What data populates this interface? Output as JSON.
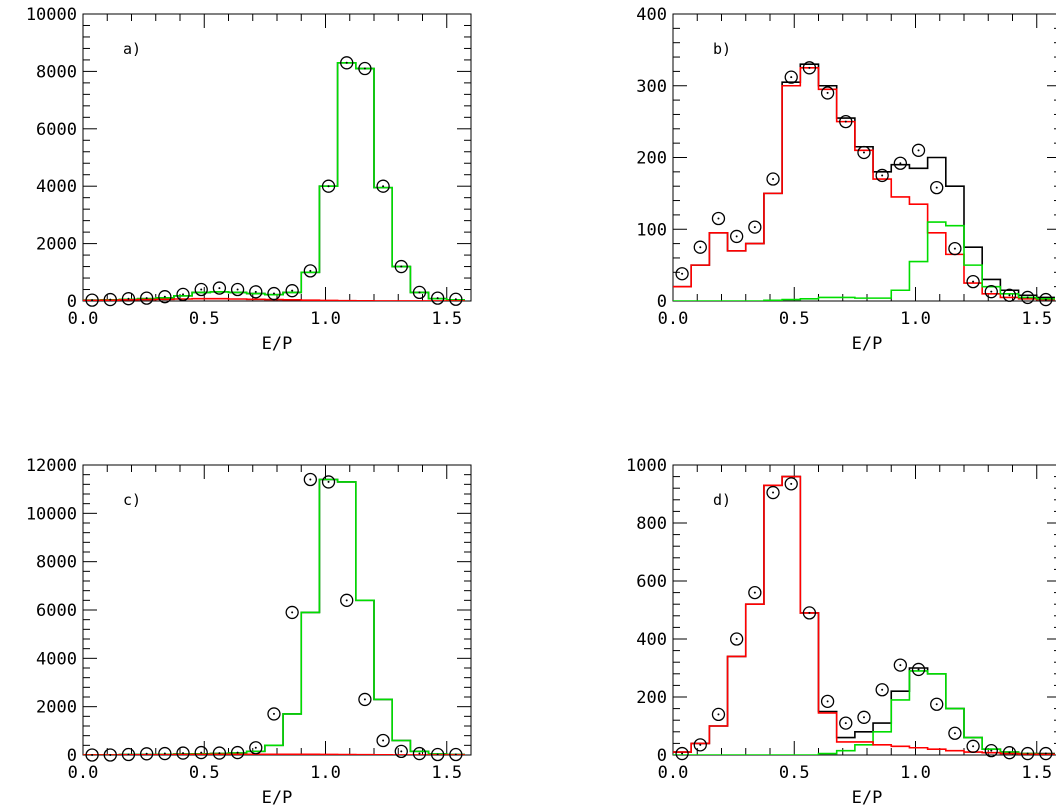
{
  "chart_data": [
    {
      "type": "histogram",
      "panel_label": "a)",
      "xlabel": "E/P",
      "ylabel": "",
      "xlim": [
        0.0,
        1.6
      ],
      "ylim": [
        0,
        10000
      ],
      "x_ticks": [
        "0.0",
        "0.5",
        "1.0",
        "1.5"
      ],
      "y_ticks": [
        "0",
        "2000",
        "4000",
        "6000",
        "8000",
        "10000"
      ],
      "bin_edges": [
        0.0,
        0.075,
        0.15,
        0.225,
        0.3,
        0.375,
        0.45,
        0.525,
        0.6,
        0.675,
        0.75,
        0.825,
        0.9,
        0.975,
        1.05,
        1.125,
        1.2,
        1.275,
        1.35,
        1.425,
        1.5,
        1.575
      ],
      "points_x": [
        0.0375,
        0.1125,
        0.1875,
        0.2625,
        0.3375,
        0.4125,
        0.4875,
        0.5625,
        0.6375,
        0.7125,
        0.7875,
        0.8625,
        0.9375,
        1.0125,
        1.0875,
        1.1625,
        1.2375,
        1.3125,
        1.3875,
        1.4625,
        1.5375
      ],
      "series": [
        {
          "color": "#000000",
          "values": [
            30,
            40,
            60,
            80,
            110,
            180,
            300,
            320,
            300,
            260,
            220,
            300,
            1000,
            4000,
            8300,
            8100,
            3950,
            1200,
            300,
            80,
            40
          ]
        },
        {
          "color": "#00dd00",
          "values": [
            30,
            40,
            60,
            80,
            110,
            180,
            300,
            320,
            300,
            260,
            220,
            300,
            1000,
            4000,
            8300,
            8100,
            3950,
            1200,
            300,
            80,
            40
          ]
        },
        {
          "color": "#ff0000",
          "values": [
            20,
            30,
            40,
            50,
            60,
            70,
            80,
            80,
            70,
            60,
            50,
            40,
            30,
            20,
            10,
            5,
            3,
            2,
            1,
            1,
            1
          ]
        }
      ],
      "points_y": [
        30,
        50,
        80,
        100,
        150,
        230,
        400,
        450,
        400,
        320,
        260,
        360,
        1050,
        4000,
        8300,
        8100,
        4000,
        1200,
        300,
        100,
        60
      ]
    },
    {
      "type": "histogram",
      "panel_label": "b)",
      "xlabel": "E/P",
      "ylabel": "",
      "xlim": [
        0.0,
        1.6
      ],
      "ylim": [
        0,
        400
      ],
      "x_ticks": [
        "0.0",
        "0.5",
        "1.0",
        "1.5"
      ],
      "y_ticks": [
        "0",
        "100",
        "200",
        "300",
        "400"
      ],
      "bin_edges": [
        0.0,
        0.075,
        0.15,
        0.225,
        0.3,
        0.375,
        0.45,
        0.525,
        0.6,
        0.675,
        0.75,
        0.825,
        0.9,
        0.975,
        1.05,
        1.125,
        1.2,
        1.275,
        1.35,
        1.425,
        1.5,
        1.575
      ],
      "points_x": [
        0.0375,
        0.1125,
        0.1875,
        0.2625,
        0.3375,
        0.4125,
        0.4875,
        0.5625,
        0.6375,
        0.7125,
        0.7875,
        0.8625,
        0.9375,
        1.0125,
        1.0875,
        1.1625,
        1.2375,
        1.3125,
        1.3875,
        1.4625,
        1.5375
      ],
      "series": [
        {
          "color": "#000000",
          "values": [
            20,
            50,
            95,
            70,
            80,
            150,
            305,
            330,
            300,
            255,
            215,
            180,
            190,
            185,
            200,
            160,
            75,
            30,
            15,
            8,
            5
          ]
        },
        {
          "color": "#ff0000",
          "values": [
            20,
            50,
            95,
            70,
            80,
            150,
            300,
            325,
            295,
            250,
            210,
            170,
            145,
            135,
            95,
            65,
            25,
            10,
            5,
            3,
            2
          ]
        },
        {
          "color": "#00dd00",
          "values": [
            0,
            0,
            0,
            0,
            0,
            1,
            2,
            3,
            5,
            5,
            4,
            4,
            15,
            55,
            110,
            105,
            50,
            20,
            10,
            5,
            3
          ]
        }
      ],
      "points_y": [
        38,
        75,
        115,
        90,
        103,
        170,
        312,
        325,
        290,
        250,
        207,
        175,
        192,
        210,
        158,
        73,
        27,
        13,
        8,
        5,
        2
      ]
    },
    {
      "type": "histogram",
      "panel_label": "c)",
      "xlabel": "E/P",
      "ylabel": "",
      "xlim": [
        0.0,
        1.6
      ],
      "ylim": [
        0,
        12000
      ],
      "x_ticks": [
        "0.0",
        "0.5",
        "1.0",
        "1.5"
      ],
      "y_ticks": [
        "0",
        "2000",
        "4000",
        "6000",
        "8000",
        "10000",
        "12000"
      ],
      "bin_edges": [
        0.0,
        0.075,
        0.15,
        0.225,
        0.3,
        0.375,
        0.45,
        0.525,
        0.6,
        0.675,
        0.75,
        0.825,
        0.9,
        0.975,
        1.05,
        1.125,
        1.2,
        1.275,
        1.35,
        1.425,
        1.5,
        1.575
      ],
      "points_x": [
        0.0375,
        0.1125,
        0.1875,
        0.2625,
        0.3375,
        0.4125,
        0.4875,
        0.5625,
        0.6375,
        0.7125,
        0.7875,
        0.8625,
        0.9375,
        1.0125,
        1.0875,
        1.1625,
        1.2375,
        1.3125,
        1.3875,
        1.4625,
        1.5375
      ],
      "series": [
        {
          "color": "#000000",
          "values": [
            10,
            10,
            20,
            20,
            30,
            40,
            50,
            60,
            80,
            150,
            400,
            1700,
            5900,
            11400,
            11300,
            6400,
            2300,
            600,
            150,
            40,
            20
          ]
        },
        {
          "color": "#00dd00",
          "values": [
            10,
            10,
            20,
            20,
            30,
            40,
            50,
            60,
            80,
            150,
            400,
            1700,
            5900,
            11400,
            11300,
            6400,
            2300,
            600,
            150,
            40,
            20
          ]
        },
        {
          "color": "#ff0000",
          "values": [
            5,
            5,
            10,
            10,
            15,
            20,
            25,
            30,
            30,
            30,
            30,
            30,
            30,
            25,
            20,
            15,
            10,
            5,
            3,
            2,
            1
          ]
        }
      ],
      "points_y": [
        0,
        0,
        20,
        50,
        60,
        80,
        100,
        80,
        100,
        300,
        1700,
        5900,
        11400,
        11300,
        6400,
        2300,
        600,
        150,
        60,
        20,
        20
      ]
    },
    {
      "type": "histogram",
      "panel_label": "d)",
      "xlabel": "E/P",
      "ylabel": "",
      "xlim": [
        0.0,
        1.6
      ],
      "ylim": [
        0,
        1000
      ],
      "x_ticks": [
        "0.0",
        "0.5",
        "1.0",
        "1.5"
      ],
      "y_ticks": [
        "0",
        "200",
        "400",
        "600",
        "800",
        "1000"
      ],
      "bin_edges": [
        0.0,
        0.075,
        0.15,
        0.225,
        0.3,
        0.375,
        0.45,
        0.525,
        0.6,
        0.675,
        0.75,
        0.825,
        0.9,
        0.975,
        1.05,
        1.125,
        1.2,
        1.275,
        1.35,
        1.425,
        1.5,
        1.575
      ],
      "points_x": [
        0.0375,
        0.1125,
        0.1875,
        0.2625,
        0.3375,
        0.4125,
        0.4875,
        0.5625,
        0.6375,
        0.7125,
        0.7875,
        0.8625,
        0.9375,
        1.0125,
        1.0875,
        1.1625,
        1.2375,
        1.3125,
        1.3875,
        1.4625,
        1.5375
      ],
      "series": [
        {
          "color": "#000000",
          "values": [
            10,
            40,
            100,
            340,
            520,
            930,
            960,
            490,
            150,
            60,
            80,
            110,
            220,
            300,
            280,
            160,
            60,
            20,
            10,
            5,
            5
          ]
        },
        {
          "color": "#00dd00",
          "values": [
            0,
            0,
            0,
            0,
            0,
            0,
            0,
            0,
            5,
            15,
            35,
            80,
            190,
            290,
            280,
            160,
            60,
            20,
            10,
            5,
            3
          ]
        },
        {
          "color": "#ff0000",
          "values": [
            10,
            40,
            100,
            340,
            520,
            930,
            960,
            490,
            145,
            45,
            45,
            35,
            30,
            25,
            20,
            15,
            10,
            8,
            5,
            3,
            2
          ]
        }
      ],
      "points_y": [
        5,
        35,
        140,
        400,
        560,
        905,
        935,
        490,
        185,
        110,
        130,
        225,
        310,
        295,
        175,
        75,
        30,
        15,
        8,
        5,
        5
      ]
    }
  ]
}
